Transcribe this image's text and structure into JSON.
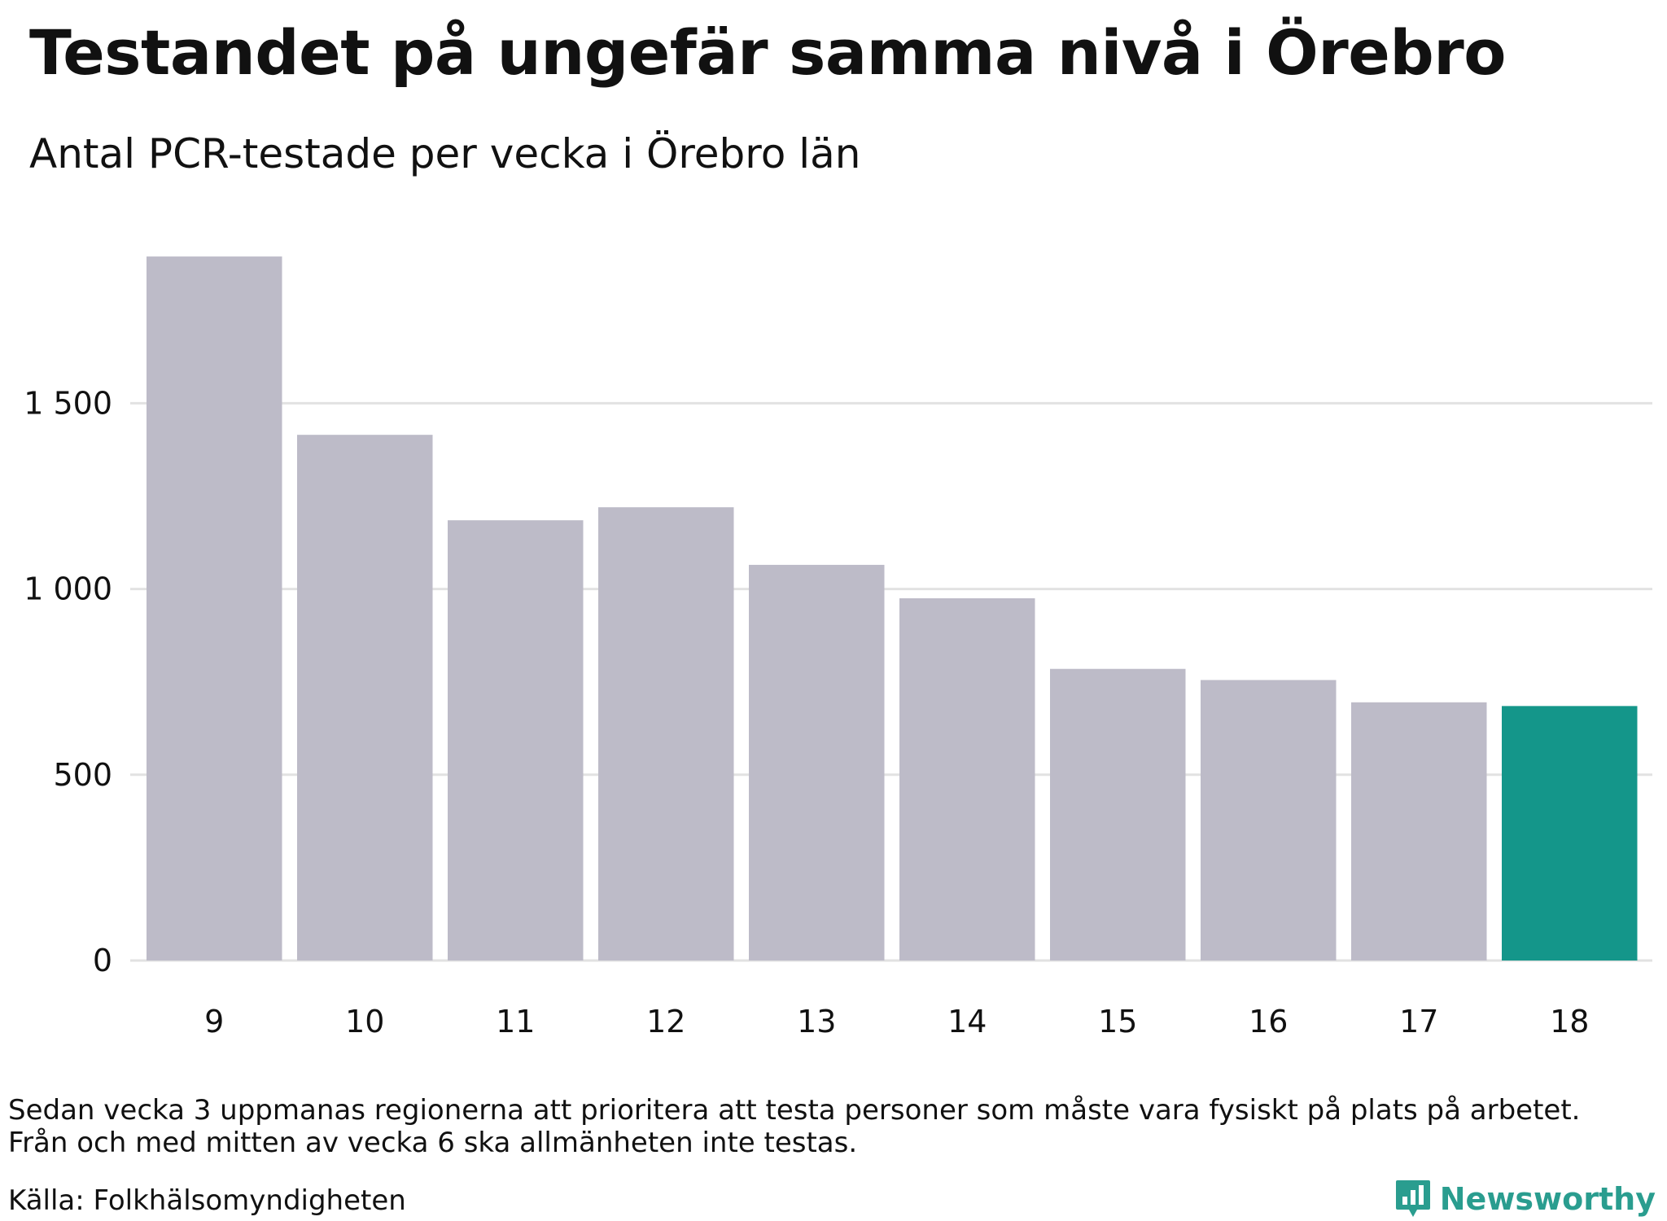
{
  "header": {
    "title": "Testandet på ungefär samma nivå i Örebro",
    "subtitle": "Antal PCR-testade per vecka i Örebro län"
  },
  "footer": {
    "note_line1": "Sedan vecka 3 uppmanas regionerna att prioritera att testa personer som måste vara fysiskt på plats på arbetet.",
    "note_line2": "Från och med mitten av vecka 6 ska allmänheten inte testas.",
    "source": "Källa: Folkhälsomyndigheten",
    "brand": "Newsworthy",
    "brand_icon": "bar-chart-icon"
  },
  "colors": {
    "bar": "#bdbbc8",
    "highlight": "#14968a",
    "grid": "#e2e2e2",
    "brand": "#2a9d8f"
  },
  "chart_data": {
    "type": "bar",
    "title": "Testandet på ungefär samma nivå i Örebro",
    "subtitle": "Antal PCR-testade per vecka i Örebro län",
    "xlabel": "",
    "ylabel": "",
    "categories": [
      "9",
      "10",
      "11",
      "12",
      "13",
      "14",
      "15",
      "16",
      "17",
      "18"
    ],
    "values": [
      1895,
      1415,
      1185,
      1220,
      1065,
      975,
      785,
      755,
      695,
      685
    ],
    "highlight_category": "18",
    "ylim": [
      0,
      1950
    ],
    "yticks": [
      0,
      500,
      1000,
      1500
    ],
    "ytick_labels": [
      "0",
      "500",
      "1 000",
      "1 500"
    ],
    "grid": true,
    "legend": "none"
  }
}
